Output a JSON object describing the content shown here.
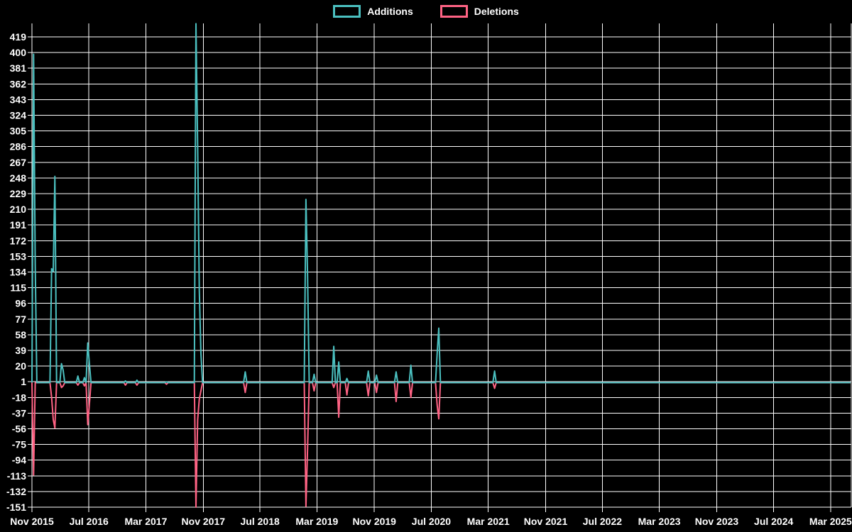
{
  "legend": {
    "items": [
      {
        "label": "Additions",
        "color": "#4bc0c0"
      },
      {
        "label": "Deletions",
        "color": "#ff6384"
      }
    ]
  },
  "chart_data": {
    "type": "line",
    "title": "",
    "legend_position": "top",
    "grid": true,
    "background_color": "#000000",
    "text_color": "#ffffff",
    "grid_color": "#ffffff",
    "x_range": [
      "2015-11-01",
      "2025-05-25"
    ],
    "y_min": -151,
    "y_max": 419,
    "y_tick_step": 19,
    "y_ticks": [
      419,
      400,
      381,
      362,
      343,
      324,
      305,
      286,
      267,
      248,
      229,
      210,
      191,
      172,
      153,
      134,
      115,
      96,
      77,
      58,
      39,
      20,
      1,
      -18,
      -37,
      -56,
      -75,
      -94,
      -113,
      -132,
      -151
    ],
    "x_ticks": [
      {
        "label": "Nov 2015",
        "date": "2015-11-01"
      },
      {
        "label": "Jul 2016",
        "date": "2016-07-01"
      },
      {
        "label": "Mar 2017",
        "date": "2017-03-01"
      },
      {
        "label": "Nov 2017",
        "date": "2017-11-01"
      },
      {
        "label": "Jul 2018",
        "date": "2018-07-01"
      },
      {
        "label": "Mar 2019",
        "date": "2019-03-01"
      },
      {
        "label": "Nov 2019",
        "date": "2019-11-01"
      },
      {
        "label": "Jul 2020",
        "date": "2020-07-01"
      },
      {
        "label": "Mar 2021",
        "date": "2021-03-01"
      },
      {
        "label": "Nov 2021",
        "date": "2021-11-01"
      },
      {
        "label": "Jul 2022",
        "date": "2022-07-01"
      },
      {
        "label": "Mar 2023",
        "date": "2023-03-01"
      },
      {
        "label": "Nov 2023",
        "date": "2023-11-01"
      },
      {
        "label": "Jul 2024",
        "date": "2024-07-01"
      },
      {
        "label": "Mar 2025",
        "date": "2025-03-01"
      }
    ],
    "series": [
      {
        "name": "Additions",
        "color": "#4bc0c0",
        "baseline": 0
      },
      {
        "name": "Deletions",
        "color": "#ff6384",
        "baseline": 0
      }
    ],
    "weekly_points": [
      {
        "date": "2015-11-08",
        "additions": 398,
        "deletions": -112
      },
      {
        "date": "2015-11-15",
        "additions": 144,
        "deletions": 0
      },
      {
        "date": "2016-01-24",
        "additions": 138,
        "deletions": -18
      },
      {
        "date": "2016-01-31",
        "additions": 135,
        "deletions": -45
      },
      {
        "date": "2016-02-07",
        "additions": 250,
        "deletions": -55
      },
      {
        "date": "2016-03-06",
        "additions": 23,
        "deletions": -6
      },
      {
        "date": "2016-03-13",
        "additions": 15,
        "deletions": -4
      },
      {
        "date": "2016-05-15",
        "additions": 8,
        "deletions": -3
      },
      {
        "date": "2016-06-12",
        "additions": 6,
        "deletions": -4
      },
      {
        "date": "2016-06-26",
        "additions": 48,
        "deletions": -51
      },
      {
        "date": "2016-07-03",
        "additions": 23,
        "deletions": -26
      },
      {
        "date": "2016-12-04",
        "additions": 2,
        "deletions": -3
      },
      {
        "date": "2017-01-22",
        "additions": 3,
        "deletions": -3
      },
      {
        "date": "2017-05-28",
        "additions": 1,
        "deletions": -2
      },
      {
        "date": "2017-10-01",
        "additions": 435,
        "deletions": -151
      },
      {
        "date": "2017-10-08",
        "additions": 285,
        "deletions": -45
      },
      {
        "date": "2017-10-15",
        "additions": 112,
        "deletions": -20
      },
      {
        "date": "2017-10-22",
        "additions": 35,
        "deletions": -10
      },
      {
        "date": "2018-04-29",
        "additions": 13,
        "deletions": -12
      },
      {
        "date": "2019-01-13",
        "additions": 222,
        "deletions": -150
      },
      {
        "date": "2019-01-20",
        "additions": 130,
        "deletions": -80
      },
      {
        "date": "2019-02-17",
        "additions": 10,
        "deletions": -10
      },
      {
        "date": "2019-05-12",
        "additions": 44,
        "deletions": -6
      },
      {
        "date": "2019-06-02",
        "additions": 25,
        "deletions": -42
      },
      {
        "date": "2019-07-07",
        "additions": 5,
        "deletions": -15
      },
      {
        "date": "2019-10-06",
        "additions": 14,
        "deletions": -16
      },
      {
        "date": "2019-11-10",
        "additions": 9,
        "deletions": -12
      },
      {
        "date": "2020-02-02",
        "additions": 13,
        "deletions": -23
      },
      {
        "date": "2020-04-05",
        "additions": 21,
        "deletions": -18
      },
      {
        "date": "2020-07-26",
        "additions": 35,
        "deletions": -27
      },
      {
        "date": "2020-08-02",
        "additions": 66,
        "deletions": -44
      },
      {
        "date": "2021-03-28",
        "additions": 14,
        "deletions": -7
      }
    ]
  }
}
